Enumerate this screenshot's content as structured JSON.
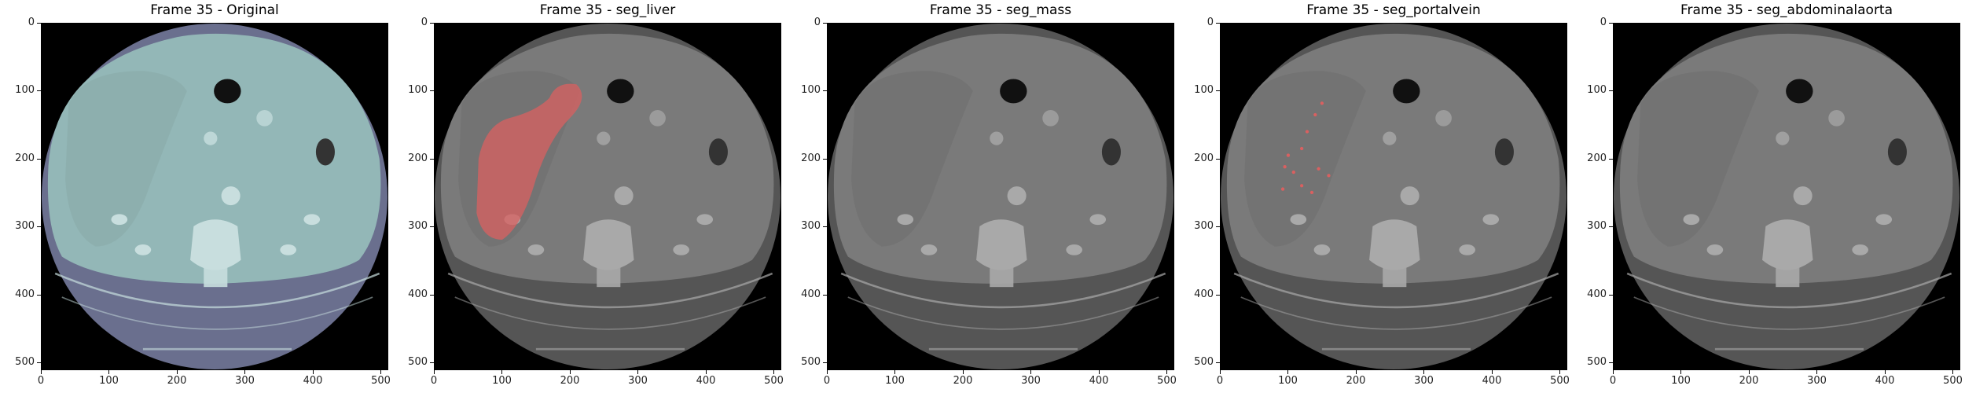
{
  "figure": {
    "panels": [
      {
        "id": "original",
        "title": "Frame 35 - Original",
        "style": "original",
        "overlay": "none"
      },
      {
        "id": "seg_liver",
        "title": "Frame 35 - seg_liver",
        "style": "gray",
        "overlay": "liver"
      },
      {
        "id": "seg_mass",
        "title": "Frame 35 - seg_mass",
        "style": "gray",
        "overlay": "none"
      },
      {
        "id": "seg_portalvein",
        "title": "Frame 35 - seg_portalvein",
        "style": "gray",
        "overlay": "portalvein"
      },
      {
        "id": "seg_abdominalaorta",
        "title": "Frame 35 - seg_abdominalaorta",
        "style": "gray",
        "overlay": "none"
      }
    ],
    "axes": {
      "xticks": [
        "0",
        "100",
        "200",
        "300",
        "400",
        "500"
      ],
      "yticks": [
        "0",
        "100",
        "200",
        "300",
        "400",
        "500"
      ],
      "xrange": [
        0,
        511
      ],
      "yrange": [
        511,
        0
      ]
    },
    "colors": {
      "original_tint": "#a8c7c7",
      "original_body": "#6a6f8e",
      "gray_body": "#555555",
      "mask_red": "#d96060"
    }
  }
}
